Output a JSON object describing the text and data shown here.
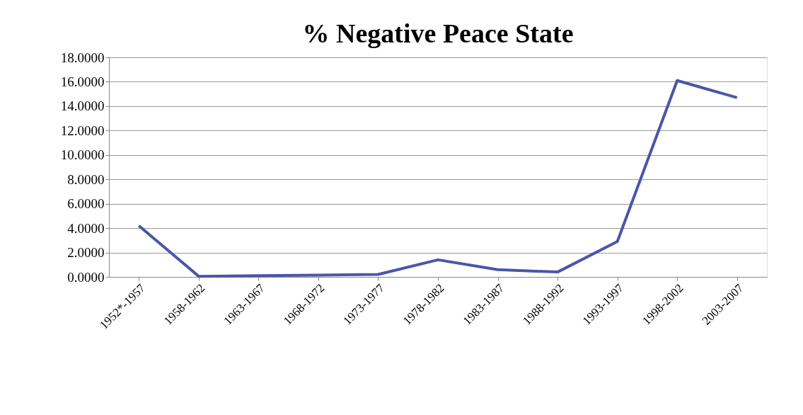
{
  "chart_data": {
    "type": "line",
    "title": "% Negative Peace State",
    "categories": [
      "1952*-1957",
      "1958-1962",
      "1963-1967",
      "1968-1972",
      "1973-1977",
      "1978-1982",
      "1983-1987",
      "1988-1992",
      "1993-1997",
      "1998-2002",
      "2003-2007"
    ],
    "series": [
      {
        "color": "#4a56a8",
        "values": [
          4.2,
          0.05,
          0.1,
          0.15,
          0.2,
          1.4,
          0.6,
          0.4,
          2.9,
          16.1,
          14.7
        ]
      }
    ],
    "ylim": [
      0,
      18
    ],
    "yticks": [
      {
        "value": 0,
        "label": "0.0000"
      },
      {
        "value": 2,
        "label": "2.0000"
      },
      {
        "value": 4,
        "label": "4.0000"
      },
      {
        "value": 6,
        "label": "6.0000"
      },
      {
        "value": 8,
        "label": "8.0000"
      },
      {
        "value": 10,
        "label": "10.0000"
      },
      {
        "value": 12,
        "label": "12.0000"
      },
      {
        "value": 14,
        "label": "14.0000"
      },
      {
        "value": 16,
        "label": "16.0000"
      },
      {
        "value": 18,
        "label": "18.0000"
      }
    ],
    "grid": "y",
    "marker": "none",
    "line_style": "solid"
  }
}
